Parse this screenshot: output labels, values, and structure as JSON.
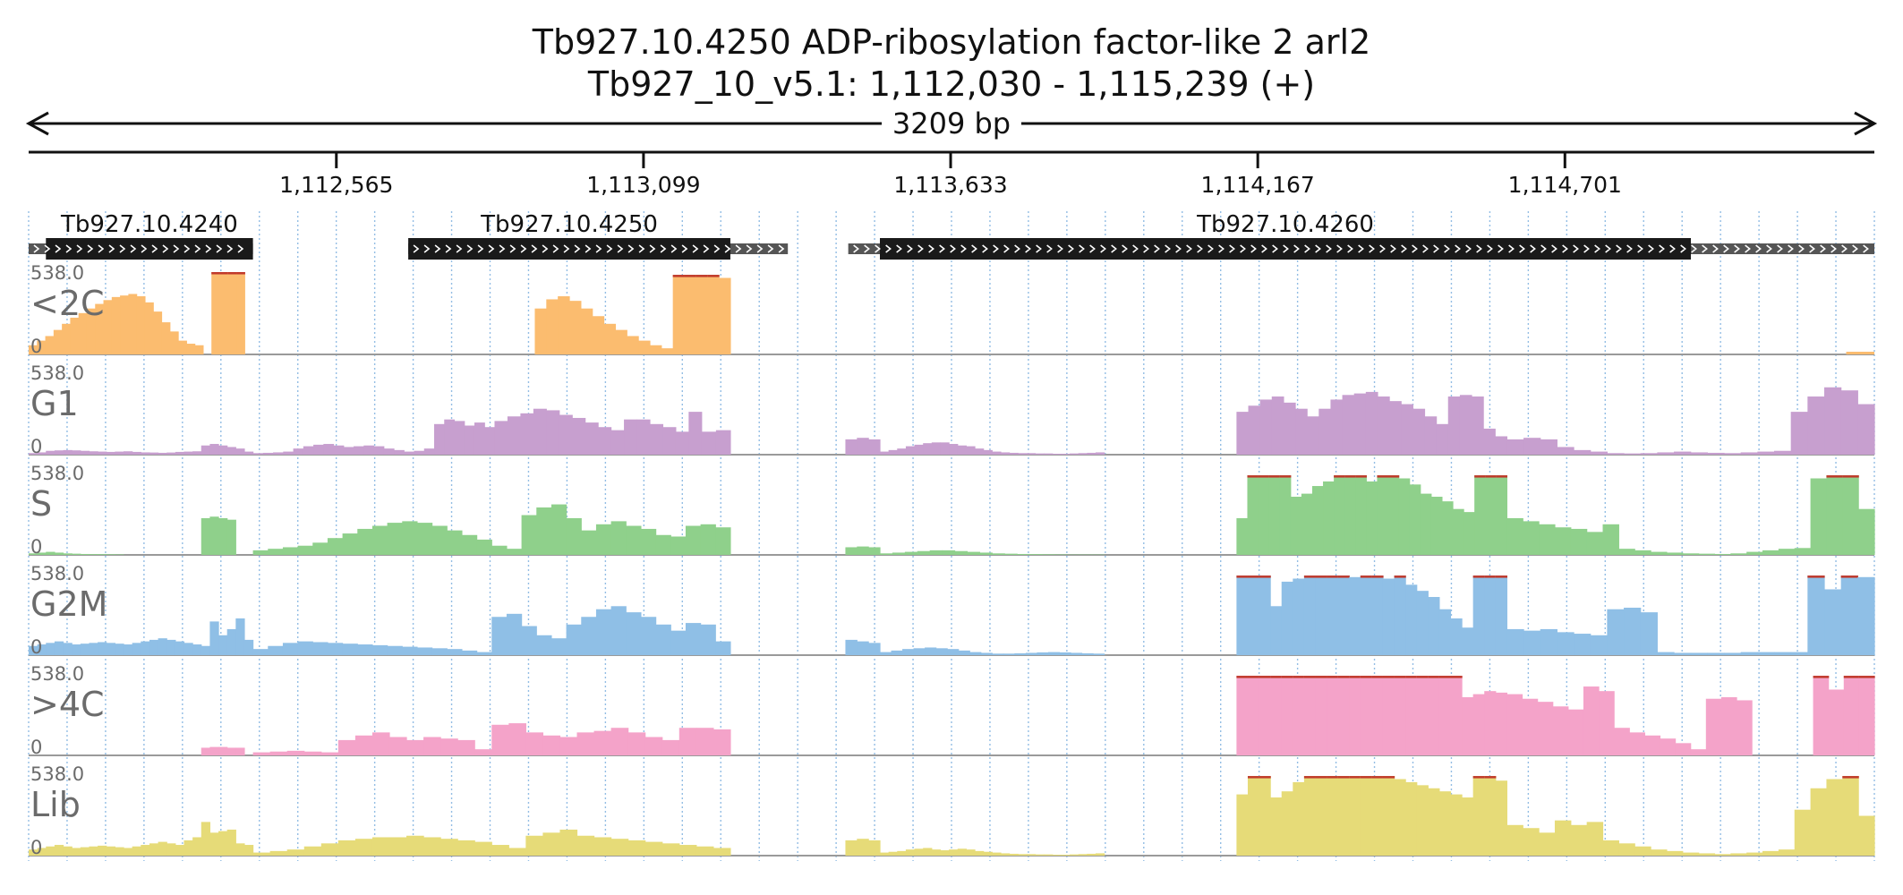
{
  "title": {
    "line1": "Tb927.10.4250  ADP-ribosylation factor-like 2  arl2",
    "line2": "Tb927_10_v5.1: 1,112,030 - 1,115,239 (+)"
  },
  "ruler": {
    "span_label": "3209 bp",
    "start": 1112030,
    "end": 1115239,
    "ticks": [
      {
        "pos": 1112565,
        "label": "1,112,565"
      },
      {
        "pos": 1113099,
        "label": "1,113,099"
      },
      {
        "pos": 1113633,
        "label": "1,113,633"
      },
      {
        "pos": 1114167,
        "label": "1,114,167"
      },
      {
        "pos": 1114701,
        "label": "1,114,701"
      }
    ]
  },
  "genes": [
    {
      "name": "Tb927.10.4240",
      "utr_start": 1112030,
      "cds_start": 1112060,
      "cds_end": 1112420,
      "utr_end": 1112420
    },
    {
      "name": "Tb927.10.4250",
      "utr_start": 1112690,
      "cds_start": 1112690,
      "cds_end": 1113250,
      "utr_end": 1113350
    },
    {
      "name": "Tb927.10.4260",
      "utr_start": 1113455,
      "cds_start": 1113510,
      "cds_end": 1114920,
      "utr_end": 1115239
    }
  ],
  "colors": {
    "lt2c": "#fbbc6f",
    "g1": "#c79fcf",
    "s": "#8fd08b",
    "g2m": "#8fbfe6",
    "gt4c": "#f4a3c9",
    "lib": "#e6db78",
    "clip": "#c0392b",
    "grid": "#6fa8dc"
  },
  "chart_data": {
    "type": "area",
    "x_unit": "bp",
    "xlim": [
      1112030,
      1115239
    ],
    "tracks": [
      {
        "name": "<2C",
        "max_label": "538.0",
        "zero_label": "0",
        "ylim": [
          0,
          538
        ],
        "color_key": "lt2c",
        "values": [
          60,
          90,
          120,
          160,
          200,
          240,
          270,
          300,
          330,
          355,
          375,
          385,
          395,
          380,
          340,
          280,
          210,
          150,
          90,
          70,
          60,
          0,
          538,
          538,
          538,
          538,
          0,
          0,
          0,
          0,
          0,
          0,
          0,
          0,
          0,
          0,
          0,
          0,
          0,
          0,
          0,
          0,
          0,
          0,
          0,
          0,
          0,
          0,
          0,
          0,
          0,
          0,
          0,
          0,
          0,
          0,
          0,
          0,
          0,
          0,
          0,
          0,
          0,
          0,
          0,
          300,
          360,
          380,
          350,
          300,
          250,
          200,
          160,
          120,
          90,
          60,
          40,
          520,
          520,
          520,
          520,
          500
        ]
      }
    ],
    "signal_tracks": [
      {
        "name": "G1",
        "max_label": "538.0",
        "zero_label": "0",
        "ylim": [
          0,
          538
        ],
        "color_key": "g1"
      },
      {
        "name": "S",
        "max_label": "538.0",
        "zero_label": "0",
        "ylim": [
          0,
          538
        ],
        "color_key": "s"
      },
      {
        "name": "G2M",
        "max_label": "538.0",
        "zero_label": "0",
        "ylim": [
          0,
          538
        ],
        "color_key": "g2m"
      },
      {
        "name": ">4C",
        "max_label": "538.0",
        "zero_label": "0",
        "ylim": [
          0,
          538
        ],
        "color_key": "gt4c"
      },
      {
        "name": "Lib",
        "max_label": "538.0",
        "zero_label": "0",
        "ylim": [
          0,
          538
        ],
        "color_key": "lib"
      }
    ],
    "segments": {
      "G1": [
        [
          1112030,
          1112420,
          [
            10,
            15,
            25,
            28,
            30,
            28,
            25,
            22,
            20,
            18,
            20,
            22,
            18,
            15,
            14,
            12,
            14,
            18,
            20,
            22,
            60,
            70,
            60,
            50,
            40,
            20
          ]
        ],
        [
          1112420,
          1112840,
          [
            10,
            12,
            15,
            20,
            40,
            55,
            65,
            70,
            60,
            50,
            55,
            60,
            55,
            40,
            30,
            20,
            25,
            40,
            200,
            230,
            220,
            190,
            210,
            180
          ]
        ],
        [
          1112840,
          1113200,
          [
            220,
            250,
            270,
            300,
            290,
            260,
            240,
            210,
            180,
            160,
            230,
            230,
            200,
            180,
            150,
            280
          ]
        ],
        [
          1113200,
          1113250,
          [
            150,
            160
          ]
        ],
        [
          1113450,
          1113510,
          [
            100,
            110,
            100
          ]
        ],
        [
          1113510,
          1113900,
          [
            20,
            30,
            40,
            55,
            65,
            75,
            80,
            80,
            70,
            60,
            55,
            40,
            30,
            20,
            15,
            12,
            10,
            10,
            8,
            8,
            6,
            6,
            8,
            10,
            12,
            15
          ]
        ],
        [
          1114130,
          1114600,
          [
            280,
            320,
            360,
            380,
            340,
            300,
            250,
            300,
            360,
            390,
            400,
            410,
            380,
            350,
            330,
            300,
            250,
            200,
            380,
            390,
            380,
            170,
            120
          ]
        ],
        [
          1114600,
          1115239,
          [
            100,
            110,
            100,
            50,
            30,
            20,
            10,
            8,
            10,
            15,
            20,
            15,
            12,
            10,
            15,
            20,
            25,
            280,
            380,
            440,
            420,
            330
          ]
        ]
      ],
      "S": [
        [
          1112030,
          1112420,
          [
            10,
            15,
            20,
            15,
            10,
            8,
            6,
            5,
            5,
            4,
            3,
            0,
            0,
            0,
            0,
            0,
            0,
            0,
            0,
            0,
            240,
            250,
            240,
            230,
            0,
            0
          ]
        ],
        [
          1112420,
          1113250,
          [
            30,
            40,
            50,
            60,
            80,
            110,
            140,
            170,
            190,
            210,
            220,
            210,
            190,
            160,
            130,
            100,
            60,
            40,
            260,
            310,
            330,
            240,
            160,
            200,
            220,
            190,
            170,
            130,
            120,
            190,
            200,
            180
          ]
        ],
        [
          1113450,
          1113510,
          [
            50,
            55,
            50
          ]
        ],
        [
          1113510,
          1113900,
          [
            10,
            15,
            20,
            25,
            30,
            30,
            25,
            20,
            15,
            10,
            8,
            6,
            5,
            4,
            3,
            2,
            2,
            2
          ]
        ],
        [
          1114130,
          1114600,
          [
            240,
            520,
            520,
            520,
            520,
            380,
            400,
            450,
            480,
            520,
            520,
            520,
            480,
            520,
            520,
            500,
            460,
            400,
            380,
            350,
            300,
            280,
            520,
            520,
            520
          ]
        ],
        [
          1114600,
          1115239,
          [
            240,
            220,
            200,
            180,
            170,
            150,
            200,
            40,
            30,
            20,
            15,
            10,
            8,
            6,
            10,
            20,
            30,
            40,
            45,
            500,
            520,
            520,
            300
          ]
        ]
      ],
      "G2M": [
        [
          1112030,
          1112420,
          [
            60,
            70,
            80,
            90,
            80,
            70,
            75,
            80,
            85,
            80,
            75,
            70,
            80,
            90,
            100,
            110,
            100,
            90,
            80,
            70,
            60,
            220,
            130,
            170,
            240,
            100
          ]
        ],
        [
          1112420,
          1113250,
          [
            40,
            60,
            80,
            90,
            85,
            80,
            75,
            70,
            65,
            60,
            55,
            50,
            45,
            40,
            30,
            20,
            250,
            270,
            190,
            130,
            110,
            200,
            250,
            300,
            320,
            280,
            250,
            200,
            160,
            210,
            200,
            90
          ]
        ],
        [
          1113450,
          1113510,
          [
            100,
            90,
            80
          ]
        ],
        [
          1113510,
          1113900,
          [
            20,
            30,
            40,
            45,
            50,
            45,
            40,
            30,
            20,
            15,
            10,
            10,
            12,
            15,
            18,
            20,
            18,
            15,
            12,
            10
          ]
        ],
        [
          1114130,
          1114600,
          [
            520,
            520,
            520,
            320,
            480,
            500,
            520,
            520,
            520,
            520,
            510,
            520,
            520,
            500,
            520,
            460,
            420,
            380,
            300,
            240,
            180,
            520,
            520,
            520
          ]
        ],
        [
          1114600,
          1115239,
          [
            170,
            160,
            170,
            150,
            140,
            130,
            300,
            310,
            280,
            20,
            15,
            15,
            15,
            15,
            20,
            20,
            20,
            20,
            520,
            430,
            520,
            510
          ]
        ]
      ],
      ">4C": [
        [
          1112030,
          1112420,
          [
            0,
            0,
            0,
            0,
            0,
            0,
            0,
            0,
            0,
            0,
            0,
            0,
            0,
            0,
            0,
            0,
            0,
            0,
            0,
            0,
            50,
            55,
            55,
            50,
            50,
            0
          ]
        ],
        [
          1112420,
          1113250,
          [
            20,
            25,
            30,
            25,
            20,
            100,
            130,
            150,
            120,
            100,
            120,
            110,
            100,
            40,
            200,
            210,
            150,
            130,
            120,
            150,
            160,
            180,
            150,
            120,
            100,
            180,
            180,
            170
          ]
        ],
        [
          1114130,
          1114600,
          [
            520,
            520,
            520,
            520,
            520,
            520,
            520,
            520,
            520,
            520,
            520,
            520,
            520,
            520,
            520,
            520,
            520,
            520,
            520,
            520,
            380,
            400,
            420,
            410
          ]
        ],
        [
          1114600,
          1115239,
          [
            400,
            370,
            350,
            320,
            300,
            450,
            420,
            180,
            150,
            130,
            110,
            80,
            40,
            370,
            380,
            360,
            0,
            0,
            0,
            0,
            520,
            430,
            520,
            520
          ]
        ]
      ],
      "Lib": [
        [
          1112030,
          1112420,
          [
            40,
            50,
            60,
            70,
            60,
            50,
            55,
            60,
            65,
            60,
            55,
            50,
            60,
            70,
            80,
            90,
            80,
            70,
            100,
            120,
            220,
            150,
            160,
            170,
            80,
            70
          ]
        ],
        [
          1112420,
          1113250,
          [
            20,
            30,
            40,
            60,
            80,
            100,
            110,
            120,
            120,
            130,
            120,
            110,
            100,
            90,
            70,
            50,
            130,
            150,
            170,
            130,
            120,
            110,
            100,
            90,
            80,
            70,
            60,
            50
          ]
        ],
        [
          1113450,
          1113510,
          [
            100,
            110,
            100
          ]
        ],
        [
          1113510,
          1113900,
          [
            20,
            25,
            30,
            40,
            45,
            50,
            40,
            35,
            40,
            45,
            40,
            30,
            25,
            20,
            15,
            12,
            10,
            10,
            8,
            8,
            6,
            6,
            8,
            10,
            12,
            15
          ]
        ],
        [
          1114130,
          1114600,
          [
            400,
            520,
            520,
            380,
            420,
            480,
            520,
            520,
            520,
            520,
            520,
            520,
            520,
            520,
            500,
            480,
            460,
            440,
            420,
            400,
            380,
            520,
            520,
            490
          ]
        ],
        [
          1114600,
          1115239,
          [
            200,
            180,
            150,
            230,
            200,
            220,
            100,
            80,
            60,
            40,
            30,
            20,
            15,
            10,
            15,
            20,
            30,
            40,
            300,
            440,
            500,
            520,
            260
          ]
        ]
      ]
    }
  }
}
